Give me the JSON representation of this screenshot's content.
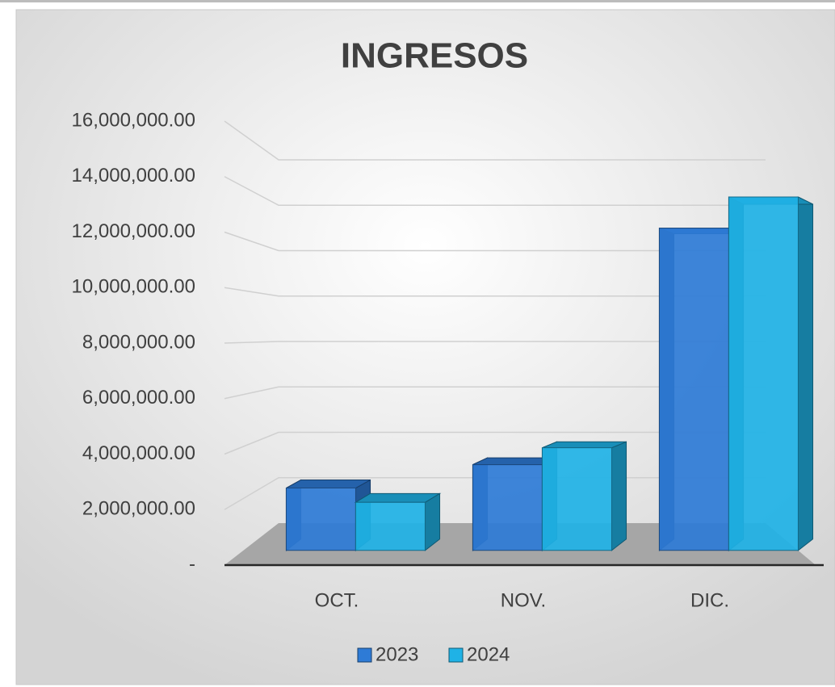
{
  "chart_data": {
    "type": "bar3d",
    "title": "INGRESOS",
    "categories": [
      "OCT.",
      "NOV.",
      "DIC."
    ],
    "series": [
      {
        "name": "2023",
        "color": "#2e7bd6",
        "values": [
          2400000,
          3300000,
          12400000
        ]
      },
      {
        "name": "2024",
        "color": "#1fb2e6",
        "values": [
          1850000,
          3950000,
          13600000
        ]
      }
    ],
    "ylim": [
      0,
      16000000
    ],
    "yticks": [
      {
        "value": 0,
        "label": "-"
      },
      {
        "value": 2000000,
        "label": "2,000,000.00"
      },
      {
        "value": 4000000,
        "label": "4,000,000.00"
      },
      {
        "value": 6000000,
        "label": "6,000,000.00"
      },
      {
        "value": 8000000,
        "label": "8,000,000.00"
      },
      {
        "value": 10000000,
        "label": "10,000,000.00"
      },
      {
        "value": 12000000,
        "label": "12,000,000.00"
      },
      {
        "value": 14000000,
        "label": "14,000,000.00"
      },
      {
        "value": 16000000,
        "label": "16,000,000.00"
      }
    ],
    "grid": true,
    "legend": "bottom"
  }
}
